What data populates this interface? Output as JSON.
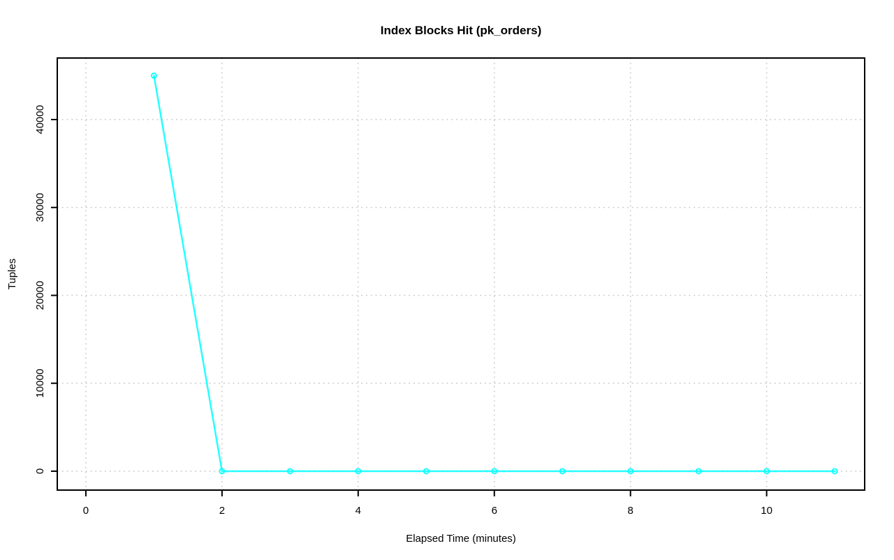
{
  "page": {
    "background": "#ffffff"
  },
  "chart_data": {
    "type": "line",
    "title": "Index Blocks Hit (pk_orders)",
    "xlabel": "Elapsed Time (minutes)",
    "ylabel": "Tuples",
    "x": [
      1,
      2,
      3,
      4,
      5,
      6,
      7,
      8,
      9,
      10,
      11
    ],
    "y": [
      45000,
      0,
      0,
      0,
      0,
      0,
      0,
      0,
      0,
      0,
      0
    ],
    "series_color": "#00ffff",
    "marker": "open-circle",
    "xticks": [
      0,
      2,
      4,
      6,
      8,
      10
    ],
    "yticks": [
      0,
      10000,
      20000,
      30000,
      40000
    ],
    "xlim": [
      -0.42,
      11.44
    ],
    "ylim": [
      -2150,
      47000
    ],
    "grid": "dotted",
    "grid_color": "#c8c8c8",
    "axis_color": "#000000",
    "legend_position": "none"
  }
}
